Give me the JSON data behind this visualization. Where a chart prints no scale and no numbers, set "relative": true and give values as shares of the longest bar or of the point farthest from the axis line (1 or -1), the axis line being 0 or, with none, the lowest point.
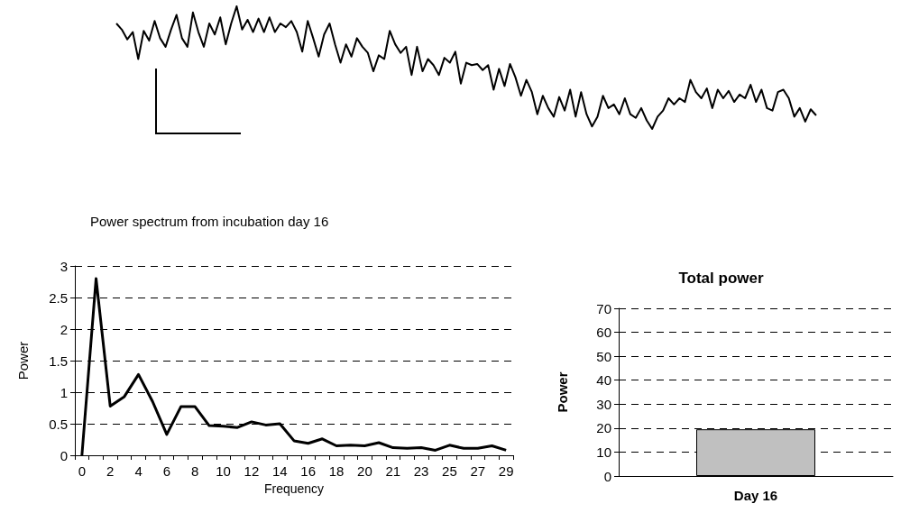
{
  "chart_data": [
    {
      "type": "line",
      "relative": true,
      "color": "#000000",
      "categories": [
        null,
        null,
        null,
        null,
        null,
        null,
        null,
        null,
        null,
        null,
        null,
        null,
        null,
        null,
        null,
        null,
        null,
        null,
        null,
        null,
        null,
        null,
        null,
        null,
        null,
        null,
        null,
        null,
        null,
        null,
        null,
        null,
        null,
        null,
        null,
        null,
        null,
        null,
        null,
        null,
        null,
        null,
        null,
        null,
        null,
        null,
        null,
        null,
        null,
        null,
        null,
        null,
        null,
        null,
        null,
        null,
        null,
        null,
        null,
        null,
        null,
        null,
        null,
        null,
        null,
        null,
        null,
        null,
        null,
        null,
        null,
        null,
        null,
        null,
        null,
        null,
        null,
        null,
        null,
        null,
        null,
        null,
        null,
        null,
        null,
        null,
        null,
        null,
        null,
        null,
        null,
        null,
        null,
        null,
        null,
        null,
        null,
        null,
        null,
        null,
        null,
        null,
        null,
        null,
        null,
        null,
        null,
        null,
        null,
        null,
        null,
        null,
        null,
        null,
        null,
        null,
        null,
        null,
        null,
        null,
        null,
        null,
        null,
        null,
        null,
        null,
        null,
        null,
        null
      ],
      "values": [
        0.86,
        0.81,
        0.73,
        0.79,
        0.57,
        0.8,
        0.72,
        0.88,
        0.74,
        0.67,
        0.81,
        0.93,
        0.74,
        0.67,
        0.95,
        0.79,
        0.67,
        0.86,
        0.77,
        0.91,
        0.69,
        0.86,
        1,
        0.81,
        0.89,
        0.79,
        0.9,
        0.79,
        0.91,
        0.79,
        0.86,
        0.83,
        0.88,
        0.79,
        0.63,
        0.88,
        0.74,
        0.59,
        0.77,
        0.86,
        0.69,
        0.54,
        0.69,
        0.59,
        0.74,
        0.67,
        0.62,
        0.47,
        0.6,
        0.57,
        0.8,
        0.69,
        0.62,
        0.67,
        0.44,
        0.67,
        0.47,
        0.57,
        0.52,
        0.44,
        0.58,
        0.54,
        0.63,
        0.37,
        0.54,
        0.52,
        0.53,
        0.48,
        0.52,
        0.32,
        0.49,
        0.35,
        0.53,
        0.42,
        0.27,
        0.4,
        0.3,
        0.12,
        0.27,
        0.17,
        0.1,
        0.26,
        0.15,
        0.32,
        0.1,
        0.3,
        0.12,
        0.02,
        0.1,
        0.27,
        0.17,
        0.2,
        0.12,
        0.25,
        0.12,
        0.09,
        0.17,
        0.07,
        0,
        0.1,
        0.15,
        0.25,
        0.2,
        0.25,
        0.22,
        0.4,
        0.3,
        0.25,
        0.33,
        0.17,
        0.32,
        0.25,
        0.31,
        0.22,
        0.28,
        0.25,
        0.36,
        0.22,
        0.32,
        0.17,
        0.15,
        0.3,
        0.32,
        0.25,
        0.1,
        0.17,
        0.06,
        0.16,
        0.11
      ]
    },
    {
      "type": "line",
      "title": "Power spectrum from incubation day 16",
      "xlabel": "Frequency",
      "ylabel": "Power",
      "color": "#000000",
      "categories": [
        "0",
        null,
        "2",
        null,
        "4",
        null,
        "6",
        null,
        "8",
        null,
        "10",
        null,
        "12",
        null,
        "14",
        null,
        "16",
        null,
        "18",
        null,
        "20",
        null,
        "21",
        null,
        "23",
        null,
        "25",
        null,
        "27",
        null,
        "29"
      ],
      "values": [
        0,
        2.8,
        0.78,
        0.93,
        1.28,
        0.85,
        0.33,
        0.77,
        0.77,
        0.47,
        0.46,
        0.44,
        0.53,
        0.48,
        0.5,
        0.23,
        0.19,
        0.26,
        0.15,
        0.16,
        0.15,
        0.2,
        0.12,
        0.11,
        0.12,
        0.08,
        0.16,
        0.11,
        0.11,
        0.15,
        0.08
      ],
      "ylim": [
        0,
        3
      ],
      "yticks": [
        0,
        0.5,
        1,
        1.5,
        2,
        2.5,
        3
      ],
      "grid": "y"
    },
    {
      "type": "bar",
      "title": "Total power",
      "ylabel": "Power",
      "categories": [
        "Day 16"
      ],
      "values": [
        19.5
      ],
      "color": "#c0c0c0",
      "ylim": [
        0,
        70
      ],
      "yticks": [
        0,
        10,
        20,
        30,
        40,
        50,
        60,
        70
      ],
      "grid": "y"
    }
  ]
}
